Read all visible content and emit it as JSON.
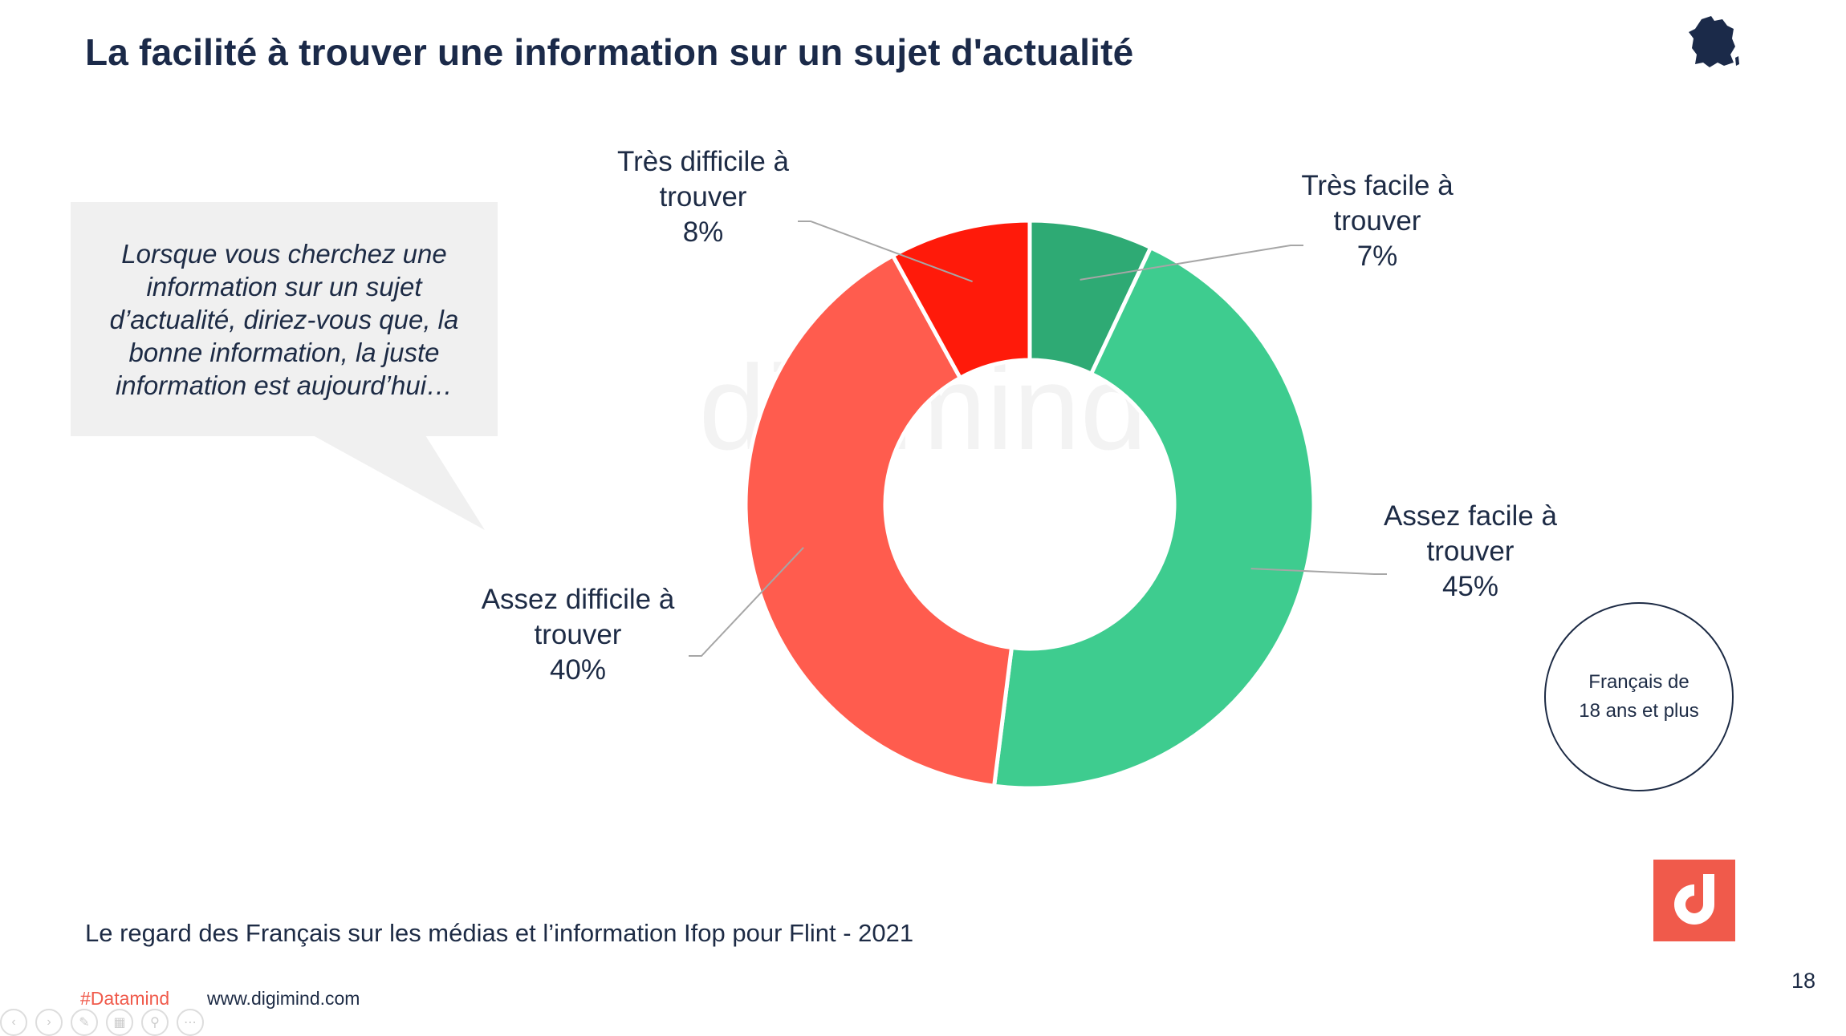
{
  "title": "La facilité à trouver une information sur un sujet d'actualité",
  "question": "Lorsque vous cherchez une information sur un sujet d’actualité, diriez-vous que, la bonne information, la juste information est aujourd’hui…",
  "audience": {
    "line1": "Français de",
    "line2": "18 ans et plus"
  },
  "footer": {
    "source": "Le regard des Français sur les médias et l’information  Ifop pour Flint - 2021",
    "hashtag": "#Datamind",
    "website": "www.digimind.com",
    "page_number": "18"
  },
  "chart_data": {
    "type": "pie",
    "donut": true,
    "slices": [
      {
        "line1": "Très facile à",
        "line2": "trouver",
        "value_label": "7%",
        "value": 7,
        "color": "#2eaa74"
      },
      {
        "line1": "Assez facile à",
        "line2": "trouver",
        "value_label": "45%",
        "value": 45,
        "color": "#3ecc8f"
      },
      {
        "line1": "Assez difficile à",
        "line2": "trouver",
        "value_label": "40%",
        "value": 40,
        "color": "#ff5c4e"
      },
      {
        "line1": "Très difficile à",
        "line2": "trouver",
        "value_label": "8%",
        "value": 8,
        "color": "#ff1a0a"
      }
    ]
  },
  "icons": {
    "region": "france-map-icon",
    "brand": "digimind-logo-icon"
  },
  "colors": {
    "title": "#1b2a49",
    "accent": "#f05a4b"
  }
}
